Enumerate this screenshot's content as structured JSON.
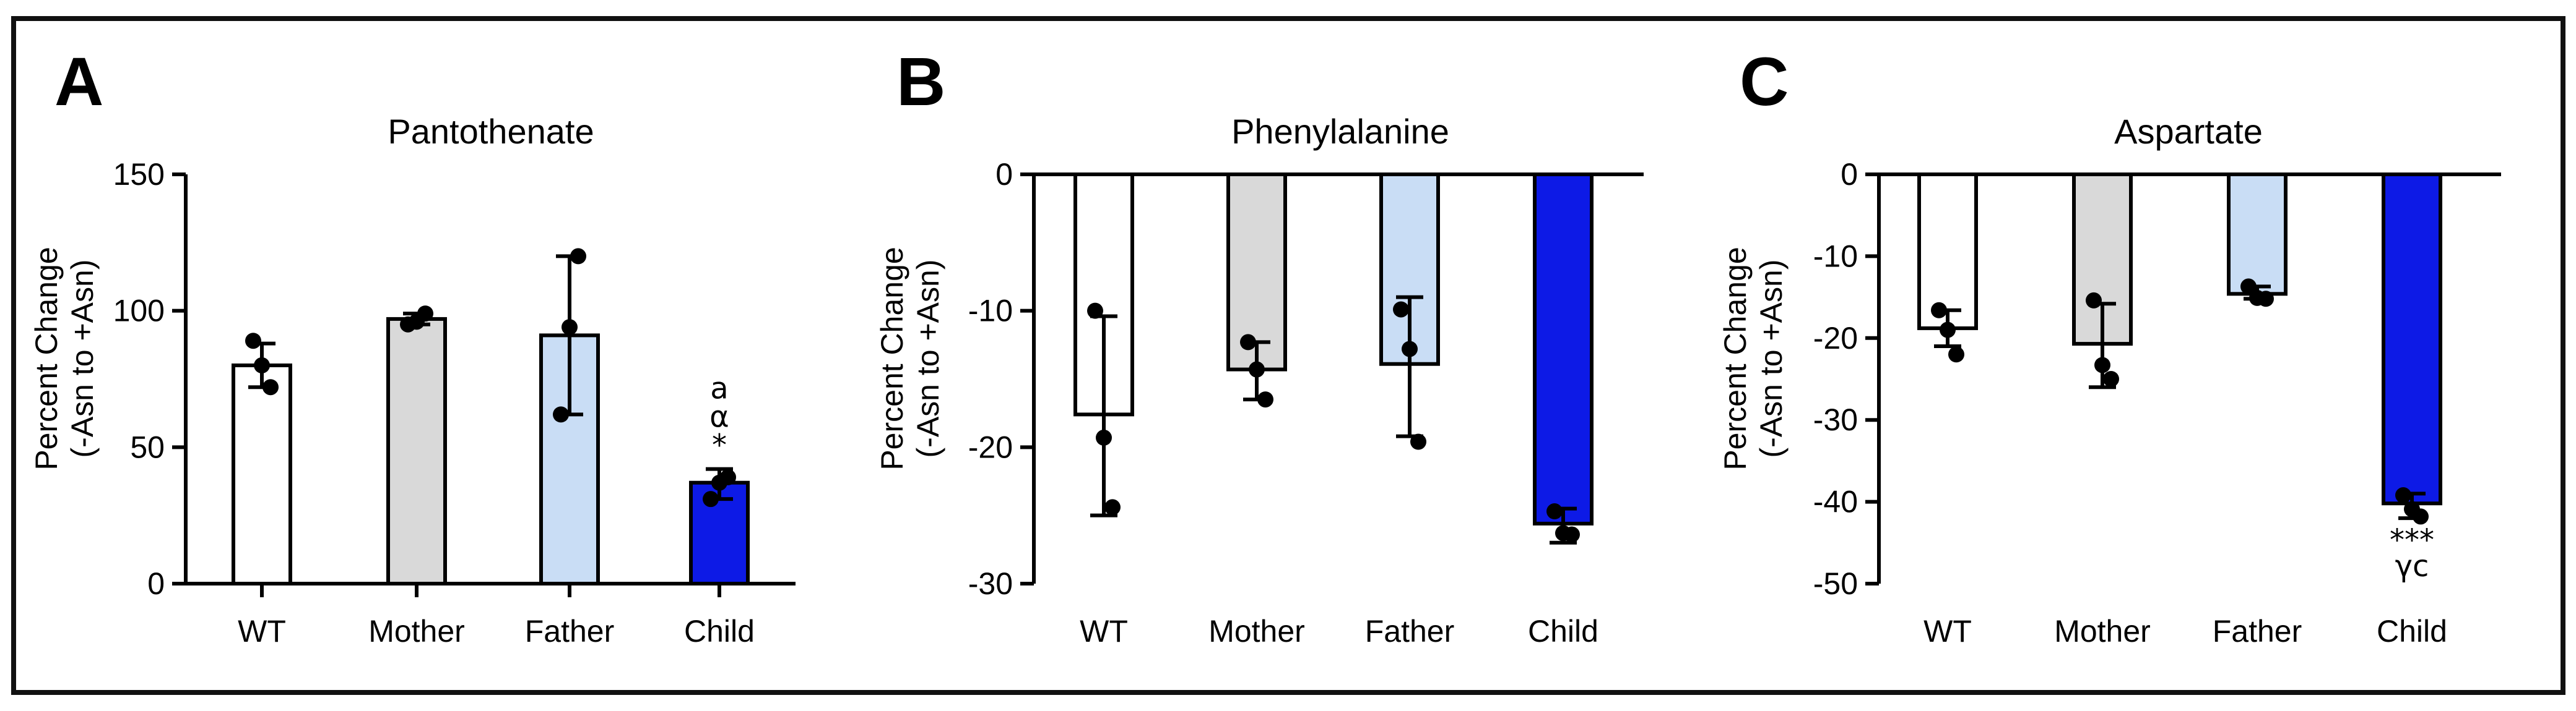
{
  "chart_data": [
    {
      "type": "bar",
      "panel": "A",
      "title": "Pantothenate",
      "ylabel": [
        "Percent Change",
        "(-Asn to +Asn)"
      ],
      "ylim": [
        0,
        150
      ],
      "yticks": [
        0,
        50,
        100,
        150
      ],
      "categories": [
        "WT",
        "Mother",
        "Father",
        "Child"
      ],
      "colors": [
        "#ffffff",
        "#d9d9d9",
        "#c9ddf5",
        "#0d1ae6"
      ],
      "values": [
        80,
        97,
        91,
        37
      ],
      "error_low": [
        72,
        95,
        62,
        31
      ],
      "error_high": [
        88,
        99,
        120,
        42
      ],
      "points": [
        [
          89,
          80,
          72
        ],
        [
          95,
          96,
          99
        ],
        [
          62,
          94,
          120
        ],
        [
          31,
          37,
          39
        ]
      ],
      "annotations": [
        [],
        [],
        [],
        [
          "a",
          "α",
          "*"
        ]
      ]
    },
    {
      "type": "bar",
      "panel": "B",
      "title": "Phenylalanine",
      "ylabel": [
        "Percent Change",
        "(-Asn to +Asn)"
      ],
      "ylim": [
        -30,
        0
      ],
      "yticks": [
        0,
        -10,
        -20,
        -30
      ],
      "categories": [
        "WT",
        "Mother",
        "Father",
        "Child"
      ],
      "colors": [
        "#ffffff",
        "#d9d9d9",
        "#c9ddf5",
        "#0d1ae6"
      ],
      "values": [
        -17.6,
        -14.3,
        -13.9,
        -25.6
      ],
      "error_low": [
        -25,
        -16.5,
        -19.2,
        -27
      ],
      "error_high": [
        -10.4,
        -12.3,
        -9,
        -24.5
      ],
      "points": [
        [
          -10,
          -19.3,
          -24.4
        ],
        [
          -12.3,
          -14.3,
          -16.5
        ],
        [
          -9.9,
          -12.8,
          -19.6
        ],
        [
          -24.7,
          -26.3,
          -26.4
        ]
      ],
      "annotations": [
        [],
        [],
        [],
        []
      ]
    },
    {
      "type": "bar",
      "panel": "C",
      "title": "Aspartate",
      "ylabel": [
        "Percent Change",
        "(-Asn to +Asn)"
      ],
      "ylim": [
        -50,
        0
      ],
      "yticks": [
        0,
        -10,
        -20,
        -30,
        -40,
        -50
      ],
      "categories": [
        "WT",
        "Mother",
        "Father",
        "Child"
      ],
      "colors": [
        "#ffffff",
        "#d9d9d9",
        "#c9ddf5",
        "#0d1ae6"
      ],
      "values": [
        -18.8,
        -20.7,
        -14.6,
        -40.2
      ],
      "error_low": [
        -21,
        -26,
        -15.2,
        -42
      ],
      "error_high": [
        -16.6,
        -15.8,
        -13.7,
        -39
      ],
      "points": [
        [
          -16.6,
          -19,
          -22
        ],
        [
          -15.4,
          -23.3,
          -25
        ],
        [
          -13.7,
          -15.1,
          -15.2
        ],
        [
          -39.2,
          -40.9,
          -41.8
        ]
      ],
      "annotations": [
        [],
        [],
        [],
        [
          "***",
          "γc"
        ]
      ]
    }
  ]
}
